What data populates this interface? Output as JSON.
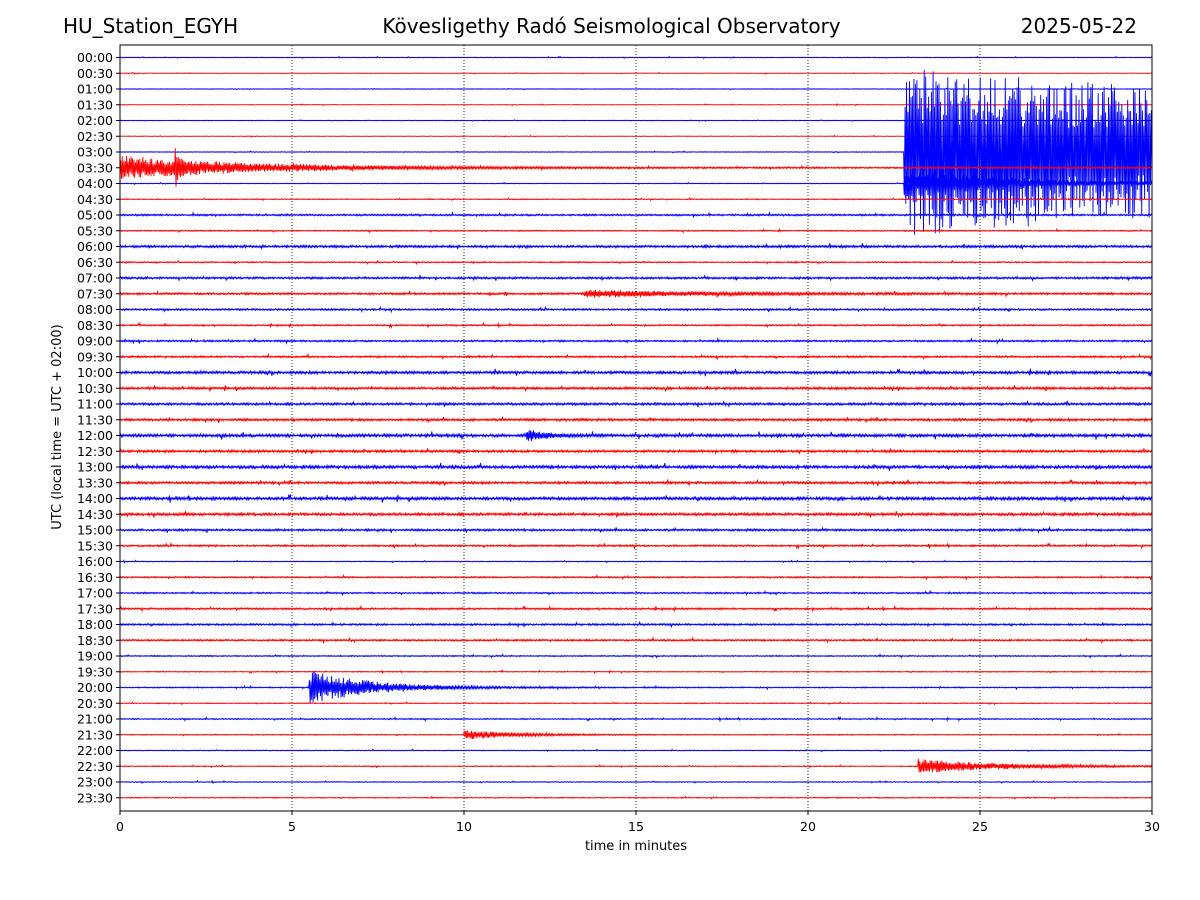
{
  "header": {
    "station": "HU_Station_EGYH",
    "observatory": "Kövesligethy Radó Seismological Observatory",
    "date": "2025-05-22"
  },
  "chart_data": {
    "type": "line",
    "title": "Kövesligethy Radó Seismological Observatory",
    "xlabel": "time in minutes",
    "ylabel": "UTC (local time = UTC + 02:00)",
    "xlim": [
      0,
      30
    ],
    "x_ticks": [
      0,
      5,
      10,
      15,
      20,
      25,
      30
    ],
    "grid": "vertical dotted lines at x ticks",
    "row_labels": [
      "00:00",
      "00:30",
      "01:00",
      "01:30",
      "02:00",
      "02:30",
      "03:00",
      "03:30",
      "04:00",
      "04:30",
      "05:00",
      "05:30",
      "06:00",
      "06:30",
      "07:00",
      "07:30",
      "08:00",
      "08:30",
      "09:00",
      "09:30",
      "10:00",
      "10:30",
      "11:00",
      "11:30",
      "12:00",
      "12:30",
      "13:00",
      "13:30",
      "14:00",
      "14:30",
      "15:00",
      "15:30",
      "16:00",
      "16:30",
      "17:00",
      "17:30",
      "18:00",
      "18:30",
      "19:00",
      "19:30",
      "20:00",
      "20:30",
      "21:00",
      "21:30",
      "22:00",
      "22:30",
      "23:00",
      "23:30"
    ],
    "row_colors": [
      "#0000ff",
      "#ff0000"
    ],
    "noise_levels": [
      0.25,
      0.2,
      0.2,
      0.2,
      0.2,
      0.2,
      0.25,
      0.5,
      0.25,
      0.3,
      0.6,
      0.4,
      0.8,
      0.4,
      0.7,
      0.7,
      0.6,
      0.5,
      0.6,
      0.6,
      0.9,
      0.8,
      0.8,
      0.8,
      1.0,
      0.8,
      1.0,
      0.8,
      1.0,
      0.9,
      0.7,
      0.6,
      0.3,
      0.5,
      0.5,
      0.6,
      0.6,
      0.6,
      0.4,
      0.3,
      0.4,
      0.3,
      0.4,
      0.3,
      0.3,
      0.3,
      0.3,
      0.3
    ],
    "events": [
      {
        "row": 7,
        "start": 0.0,
        "amp": 10,
        "decay": 4.0
      },
      {
        "row": 7,
        "start": 1.6,
        "amp": 16,
        "decay": 0.12
      },
      {
        "row": 6,
        "start": 22.8,
        "amp": 70,
        "decay": 30
      },
      {
        "row": 8,
        "start": 22.8,
        "amp": 14,
        "decay": 3
      },
      {
        "row": 40,
        "start": 5.5,
        "amp": 14,
        "decay": 1.8
      },
      {
        "row": 43,
        "start": 10.0,
        "amp": 4,
        "decay": 1.5
      },
      {
        "row": 45,
        "start": 23.2,
        "amp": 6,
        "decay": 2.5
      },
      {
        "row": 15,
        "start": 13.5,
        "amp": 3,
        "decay": 3.5
      },
      {
        "row": 24,
        "start": 11.8,
        "amp": 5,
        "decay": 0.6
      }
    ]
  }
}
